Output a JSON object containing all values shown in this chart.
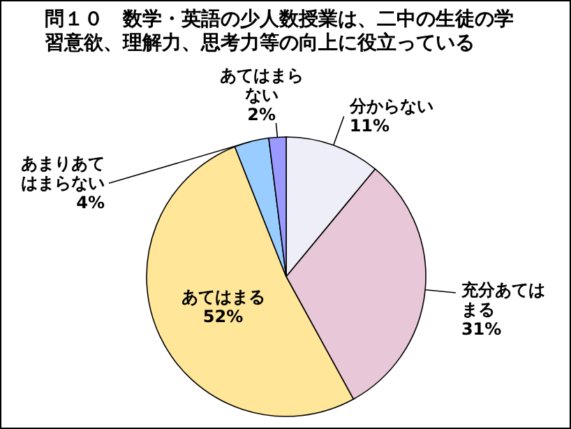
{
  "chart_data": {
    "type": "pie",
    "title": "問１０　数学・英語の少人数授業は、二中の生徒の学習意欲、理解力、思考力等の向上に役立っている",
    "categories": [
      "分からない",
      "充分あてはまる",
      "あてはまる",
      "あまりあてはまらない",
      "あてはまらない"
    ],
    "values": [
      11,
      31,
      52,
      4,
      2
    ],
    "value_labels": [
      "11%",
      "31%",
      "52%",
      "4%",
      "2%"
    ],
    "colors": [
      "#eeeef8",
      "#e8c8d8",
      "#ffe699",
      "#99ccff",
      "#9999ff"
    ]
  }
}
